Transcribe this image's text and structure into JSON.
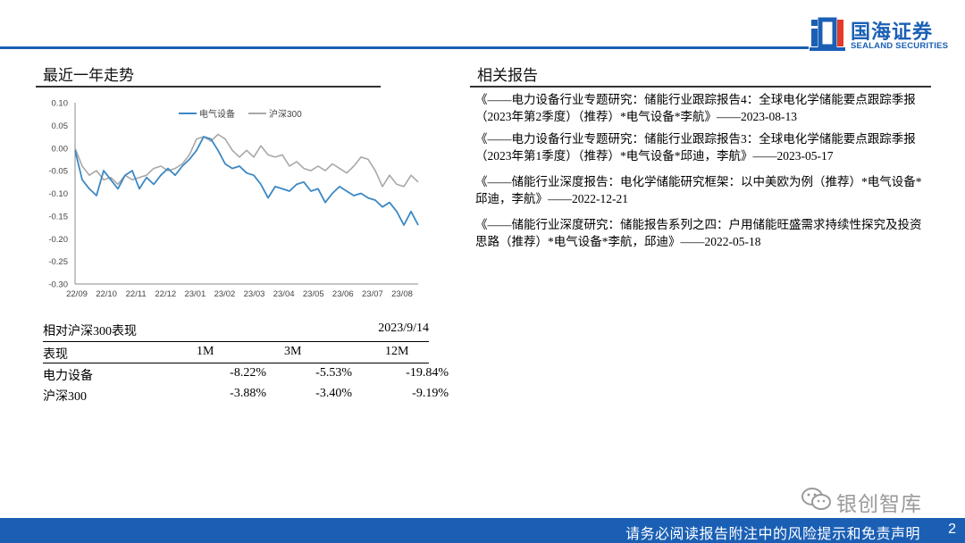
{
  "header": {
    "logo_cn": "国海证券",
    "logo_en": "SEALAND SECURITIES",
    "brand_color": "#1a5fb4"
  },
  "left": {
    "title": "最近一年走势"
  },
  "right": {
    "title": "相关报告",
    "reports": [
      "《——电力设备行业专题研究：储能行业跟踪报告4：全球电化学储能要点跟踪季报（2023年第2季度）（推荐）*电气设备*李航》——2023-08-13",
      "《——电力设备行业专题研究：储能行业跟踪报告3：全球电化学储能要点跟踪季报（2023年第1季度）（推荐）*电气设备*邱迪，李航》——2023-05-17",
      "《——储能行业深度报告：电化学储能研究框架：以中美欧为例（推荐）*电气设备*邱迪，李航》——2022-12-21",
      "《——储能行业深度研究：储能报告系列之四：户用储能旺盛需求持续性探究及投资思路（推荐）*电气设备*李航，邱迪》——2022-05-18"
    ]
  },
  "chart_data": {
    "type": "line",
    "ylim": [
      -0.3,
      0.1
    ],
    "y_ticks": [
      "0.10",
      "0.05",
      "0.00",
      "-0.05",
      "-0.10",
      "-0.15",
      "-0.20",
      "-0.25",
      "-0.30"
    ],
    "y_tick_values": [
      0.1,
      0.05,
      0.0,
      -0.05,
      -0.1,
      -0.15,
      -0.2,
      -0.25,
      -0.3
    ],
    "x_ticks": [
      "22/09",
      "22/10",
      "22/11",
      "22/12",
      "23/01",
      "23/02",
      "23/03",
      "23/04",
      "23/05",
      "23/06",
      "23/07",
      "23/08"
    ],
    "legend_position": "top-center",
    "grid": false,
    "x": [
      0,
      0.25,
      0.5,
      0.75,
      1,
      1.25,
      1.5,
      1.75,
      2,
      2.25,
      2.5,
      2.75,
      3,
      3.25,
      3.5,
      3.75,
      4,
      4.25,
      4.5,
      4.75,
      5,
      5.25,
      5.5,
      5.75,
      6,
      6.25,
      6.5,
      6.75,
      7,
      7.25,
      7.5,
      7.75,
      8,
      8.25,
      8.5,
      8.75,
      9,
      9.25,
      9.5,
      9.75,
      10,
      10.25,
      10.5,
      10.75,
      11,
      11.25,
      11.5,
      11.75,
      12
    ],
    "series": [
      {
        "name": "电气设备",
        "color": "#3b88c4",
        "values": [
          -0.005,
          -0.07,
          -0.09,
          -0.105,
          -0.05,
          -0.07,
          -0.09,
          -0.06,
          -0.05,
          -0.09,
          -0.065,
          -0.08,
          -0.06,
          -0.045,
          -0.06,
          -0.04,
          -0.025,
          -0.005,
          0.025,
          0.02,
          -0.005,
          -0.035,
          -0.045,
          -0.04,
          -0.055,
          -0.06,
          -0.08,
          -0.11,
          -0.085,
          -0.09,
          -0.095,
          -0.08,
          -0.075,
          -0.095,
          -0.09,
          -0.12,
          -0.1,
          -0.085,
          -0.095,
          -0.105,
          -0.1,
          -0.11,
          -0.115,
          -0.13,
          -0.12,
          -0.14,
          -0.17,
          -0.14,
          -0.17
        ]
      },
      {
        "name": "沪深300",
        "color": "#a8a8a8",
        "values": [
          0.0,
          -0.04,
          -0.06,
          -0.05,
          -0.07,
          -0.065,
          -0.08,
          -0.06,
          -0.07,
          -0.065,
          -0.06,
          -0.045,
          -0.04,
          -0.05,
          -0.045,
          -0.035,
          -0.015,
          0.02,
          0.025,
          0.015,
          0.03,
          0.02,
          -0.005,
          -0.02,
          -0.005,
          -0.02,
          0.005,
          -0.015,
          -0.02,
          -0.015,
          -0.04,
          -0.03,
          -0.045,
          -0.05,
          -0.04,
          -0.05,
          -0.035,
          -0.045,
          -0.055,
          -0.04,
          -0.02,
          -0.025,
          -0.05,
          -0.085,
          -0.06,
          -0.08,
          -0.085,
          -0.06,
          -0.075
        ]
      }
    ]
  },
  "performance": {
    "title": "相对沪深300表现",
    "date": "2023/9/14",
    "headers": [
      "表现",
      "1M",
      "3M",
      "12M"
    ],
    "rows": [
      [
        "电力设备",
        "-8.22%",
        "-5.53%",
        "-19.84%"
      ],
      [
        "沪深300",
        "-3.88%",
        "-3.40%",
        "-9.19%"
      ]
    ]
  },
  "watermark": {
    "text": "银创智库",
    "icon": "wechat-icon"
  },
  "footer": {
    "disclaimer": "请务必阅读报告附注中的风险提示和免责声明",
    "page": "2"
  }
}
